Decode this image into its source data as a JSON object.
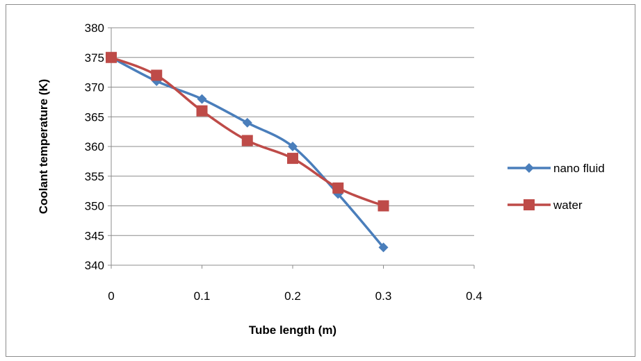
{
  "chart_data": {
    "type": "line",
    "xlabel": "Tube length (m)",
    "ylabel": "Coolant temperature (K)",
    "xlim": [
      0,
      0.4
    ],
    "ylim": [
      340,
      380
    ],
    "xticks": [
      0,
      0.1,
      0.2,
      0.3,
      0.4
    ],
    "xtick_labels": [
      "0",
      "0.1",
      "0.2",
      "0.3",
      "0.4"
    ],
    "yticks": [
      340,
      345,
      350,
      355,
      360,
      365,
      370,
      375,
      380
    ],
    "ytick_labels": [
      "340",
      "345",
      "350",
      "355",
      "360",
      "365",
      "370",
      "375",
      "380"
    ],
    "grid": "horizontal",
    "legend_position": "right",
    "series": [
      {
        "name": "nano fluid",
        "color": "#4a7ebb",
        "marker": "diamond",
        "x": [
          0,
          0.05,
          0.1,
          0.15,
          0.2,
          0.25,
          0.3
        ],
        "y": [
          375,
          371,
          368,
          364,
          360,
          352,
          343
        ]
      },
      {
        "name": "water",
        "color": "#be4b48",
        "marker": "square",
        "x": [
          0,
          0.05,
          0.1,
          0.15,
          0.2,
          0.25,
          0.3
        ],
        "y": [
          375,
          372,
          366,
          361,
          358,
          353,
          350
        ]
      }
    ]
  }
}
